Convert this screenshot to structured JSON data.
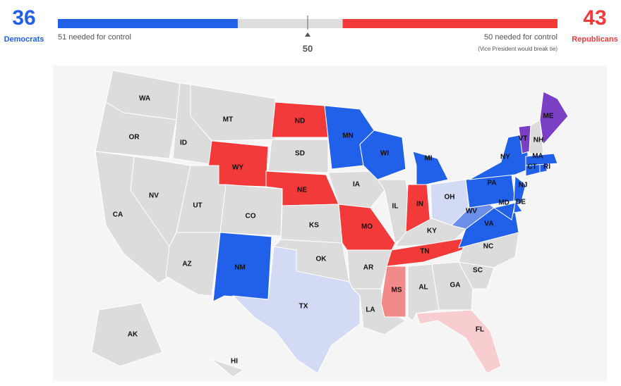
{
  "header": {
    "dem": {
      "seats": 36,
      "label": "Democrats",
      "note": "51 needed for control",
      "color": "#2160e8"
    },
    "rep": {
      "seats": 43,
      "label": "Republicans",
      "note": "50 needed for control",
      "subnote": "(Vice President would break tie)",
      "color": "#f23a3a"
    },
    "control_mark": 50
  },
  "map": {
    "states": [
      {
        "abbr": "WA",
        "color": "#dcdcdc"
      },
      {
        "abbr": "OR",
        "color": "#dcdcdc"
      },
      {
        "abbr": "CA",
        "color": "#dcdcdc"
      },
      {
        "abbr": "NV",
        "color": "#dcdcdc"
      },
      {
        "abbr": "ID",
        "color": "#dcdcdc"
      },
      {
        "abbr": "MT",
        "color": "#dcdcdc"
      },
      {
        "abbr": "WY",
        "color": "#f23a3a"
      },
      {
        "abbr": "UT",
        "color": "#dcdcdc"
      },
      {
        "abbr": "CO",
        "color": "#dcdcdc"
      },
      {
        "abbr": "AZ",
        "color": "#dcdcdc"
      },
      {
        "abbr": "NM",
        "color": "#2160e8"
      },
      {
        "abbr": "ND",
        "color": "#f23a3a"
      },
      {
        "abbr": "SD",
        "color": "#dcdcdc"
      },
      {
        "abbr": "NE",
        "color": "#f23a3a"
      },
      {
        "abbr": "KS",
        "color": "#dcdcdc"
      },
      {
        "abbr": "OK",
        "color": "#dcdcdc"
      },
      {
        "abbr": "TX",
        "color": "#d3dbf4"
      },
      {
        "abbr": "MN",
        "color": "#2160e8"
      },
      {
        "abbr": "IA",
        "color": "#dcdcdc"
      },
      {
        "abbr": "MO",
        "color": "#f23a3a"
      },
      {
        "abbr": "AR",
        "color": "#dcdcdc"
      },
      {
        "abbr": "LA",
        "color": "#dcdcdc"
      },
      {
        "abbr": "WI",
        "color": "#2160e8"
      },
      {
        "abbr": "IL",
        "color": "#dcdcdc"
      },
      {
        "abbr": "MI",
        "color": "#2160e8"
      },
      {
        "abbr": "IN",
        "color": "#f23a3a"
      },
      {
        "abbr": "OH",
        "color": "#d3dbf4"
      },
      {
        "abbr": "KY",
        "color": "#dcdcdc"
      },
      {
        "abbr": "TN",
        "color": "#f23a3a"
      },
      {
        "abbr": "MS",
        "color": "#f28a8a"
      },
      {
        "abbr": "AL",
        "color": "#dcdcdc"
      },
      {
        "abbr": "GA",
        "color": "#dcdcdc"
      },
      {
        "abbr": "FL",
        "color": "#f7cdd0"
      },
      {
        "abbr": "SC",
        "color": "#dcdcdc"
      },
      {
        "abbr": "NC",
        "color": "#dcdcdc"
      },
      {
        "abbr": "VA",
        "color": "#2160e8"
      },
      {
        "abbr": "WV",
        "color": "#6b8ee8"
      },
      {
        "abbr": "PA",
        "color": "#2160e8"
      },
      {
        "abbr": "NY",
        "color": "#2160e8"
      },
      {
        "abbr": "NJ",
        "color": "#2160e8"
      },
      {
        "abbr": "DE",
        "color": "#2160e8"
      },
      {
        "abbr": "MD",
        "color": "#2160e8"
      },
      {
        "abbr": "CT",
        "color": "#2160e8"
      },
      {
        "abbr": "RI",
        "color": "#2160e8"
      },
      {
        "abbr": "MA",
        "color": "#2160e8"
      },
      {
        "abbr": "VT",
        "color": "#7a3fc4"
      },
      {
        "abbr": "NH",
        "color": "#dcdcdc"
      },
      {
        "abbr": "ME",
        "color": "#7a3fc4"
      },
      {
        "abbr": "AK",
        "color": "#dcdcdc"
      },
      {
        "abbr": "HI",
        "color": "#dcdcdc"
      }
    ]
  }
}
